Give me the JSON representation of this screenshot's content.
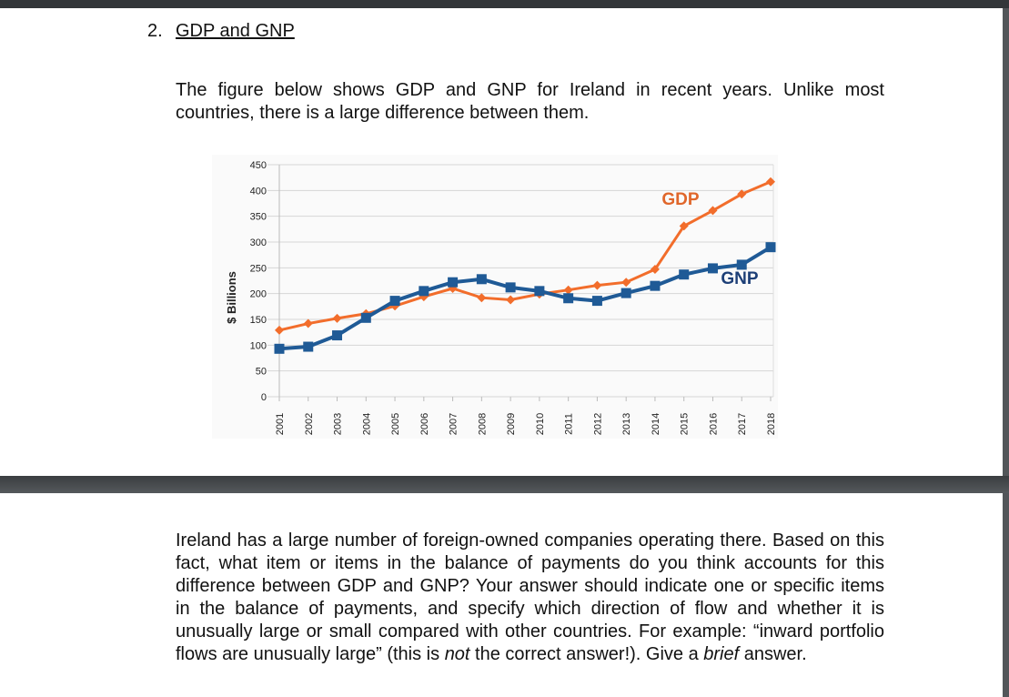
{
  "section": {
    "number": "2.",
    "title": "GDP and GNP"
  },
  "intro": "The figure below shows GDP and GNP for Ireland in recent years. Unlike most countries, there is a large difference between them.",
  "question": {
    "part1": "Ireland has a large number of foreign-owned companies operating there. Based on this fact, what item or items in the balance of payments do you think accounts for this difference between GDP and GNP? Your answer should indicate one or specific items in the balance of payments, and specify which direction of flow and whether it is unusually large or small compared with other countries. For example: “inward portfolio flows are unusually large” (this is ",
    "emph1": "not",
    "part2": " the correct answer!). Give a ",
    "emph2": "brief",
    "part3": " answer."
  },
  "chart_data": {
    "type": "line",
    "title": "",
    "xlabel": "",
    "ylabel": "$ Billions",
    "ylim": [
      0,
      450
    ],
    "yticks": [
      "0",
      "50",
      "100",
      "150",
      "200",
      "250",
      "300",
      "350",
      "400",
      "450"
    ],
    "grid": true,
    "categories": [
      "2001",
      "2002",
      "2003",
      "2004",
      "2005",
      "2006",
      "2007",
      "2008",
      "2009",
      "2010",
      "2011",
      "2012",
      "2013",
      "2014",
      "2015",
      "2016",
      "2017",
      "2018"
    ],
    "series": [
      {
        "name": "GDP",
        "color": "#f26d2b",
        "marker": "diamond",
        "values": [
          129,
          142,
          152,
          161,
          176,
          194,
          210,
          192,
          188,
          199,
          207,
          216,
          222,
          247,
          331,
          361,
          393,
          417
        ]
      },
      {
        "name": "GNP",
        "color": "#1f5a96",
        "marker": "square",
        "values": [
          93,
          97,
          119,
          153,
          186,
          205,
          222,
          228,
          212,
          205,
          191,
          186,
          201,
          215,
          237,
          249,
          256,
          290
        ]
      }
    ]
  }
}
